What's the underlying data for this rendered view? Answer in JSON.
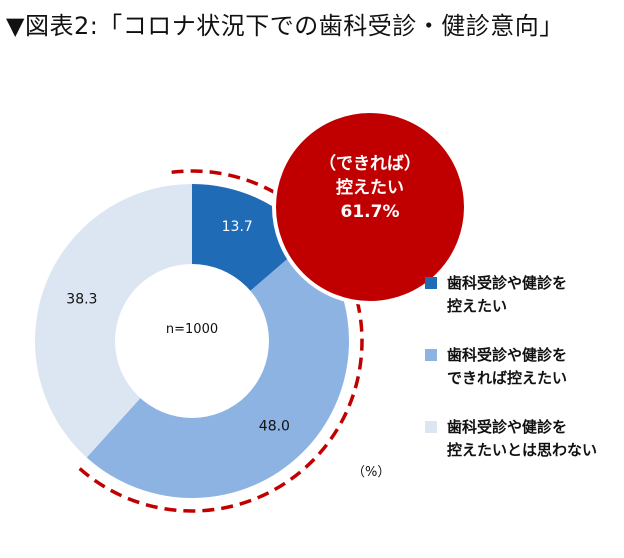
{
  "title": "▼図表2:「コロナ状況下での歯科受診・健診意向」",
  "chart_data": {
    "type": "pie",
    "center_label": "n=1000",
    "unit": "（%）",
    "slices": [
      {
        "label": "歯科受診や健診を\n控えたい",
        "value": 13.7,
        "color": "#1f6bb5"
      },
      {
        "label": "歯科受診や健診を\nできれば控えたい",
        "value": 48.0,
        "color": "#8db3e2"
      },
      {
        "label": "歯科受診や健診を\n控えたいとは思わない",
        "value": 38.3,
        "color": "#dce6f2"
      }
    ],
    "callout": {
      "line1": "（できれば）",
      "line2": "控えたい",
      "line3": "61.7%",
      "color": "#c00000"
    }
  }
}
